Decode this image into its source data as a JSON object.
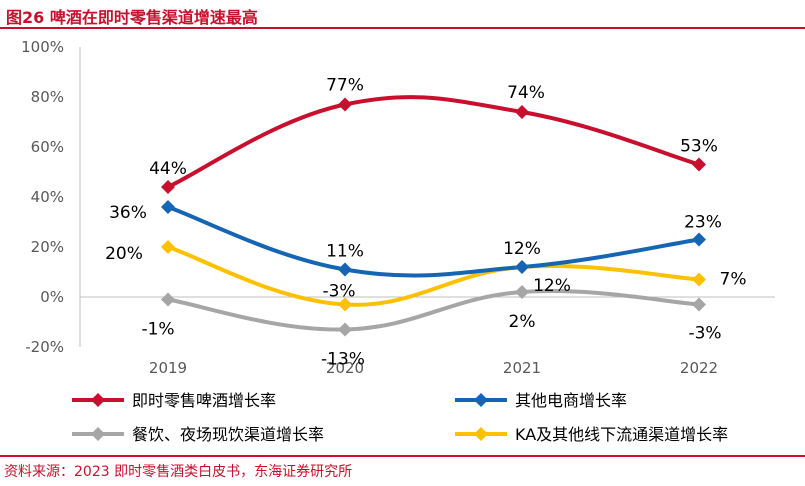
{
  "figure_title": "图26  啤酒在即时零售渠道增速最高",
  "source_text": "资料来源：2023 即时零售酒类白皮书，东海证券研究所",
  "chart_data": {
    "type": "line",
    "categories": [
      "2019",
      "2020",
      "2021",
      "2022"
    ],
    "ylim": [
      -20,
      100
    ],
    "yticks": [
      -20,
      0,
      20,
      40,
      60,
      80,
      100
    ],
    "ytick_labels": [
      "-20%",
      "0%",
      "20%",
      "40%",
      "60%",
      "80%",
      "100%"
    ],
    "grid": false,
    "legend_position": "bottom",
    "series": [
      {
        "name": "即时零售啤酒增长率",
        "color": "#c8102e",
        "values": [
          44,
          77,
          74,
          53
        ],
        "labels": [
          "44%",
          "77%",
          "74%",
          "53%"
        ]
      },
      {
        "name": "其他电商增长率",
        "color": "#1565b4",
        "values": [
          36,
          11,
          12,
          23
        ],
        "labels": [
          "36%",
          "11%",
          "12%",
          "23%"
        ]
      },
      {
        "name": "餐饮、夜场现饮渠道增长率",
        "color": "#a6a6a6",
        "values": [
          -1,
          -13,
          2,
          -3
        ],
        "labels": [
          "-1%",
          "-13%",
          "2%",
          "-3%"
        ]
      },
      {
        "name": "KA及其他线下流通渠道增长率",
        "color": "#ffc000",
        "values": [
          20,
          -3,
          12,
          7
        ],
        "labels": [
          "20%",
          "-3%",
          "12%",
          "7%"
        ]
      }
    ]
  }
}
